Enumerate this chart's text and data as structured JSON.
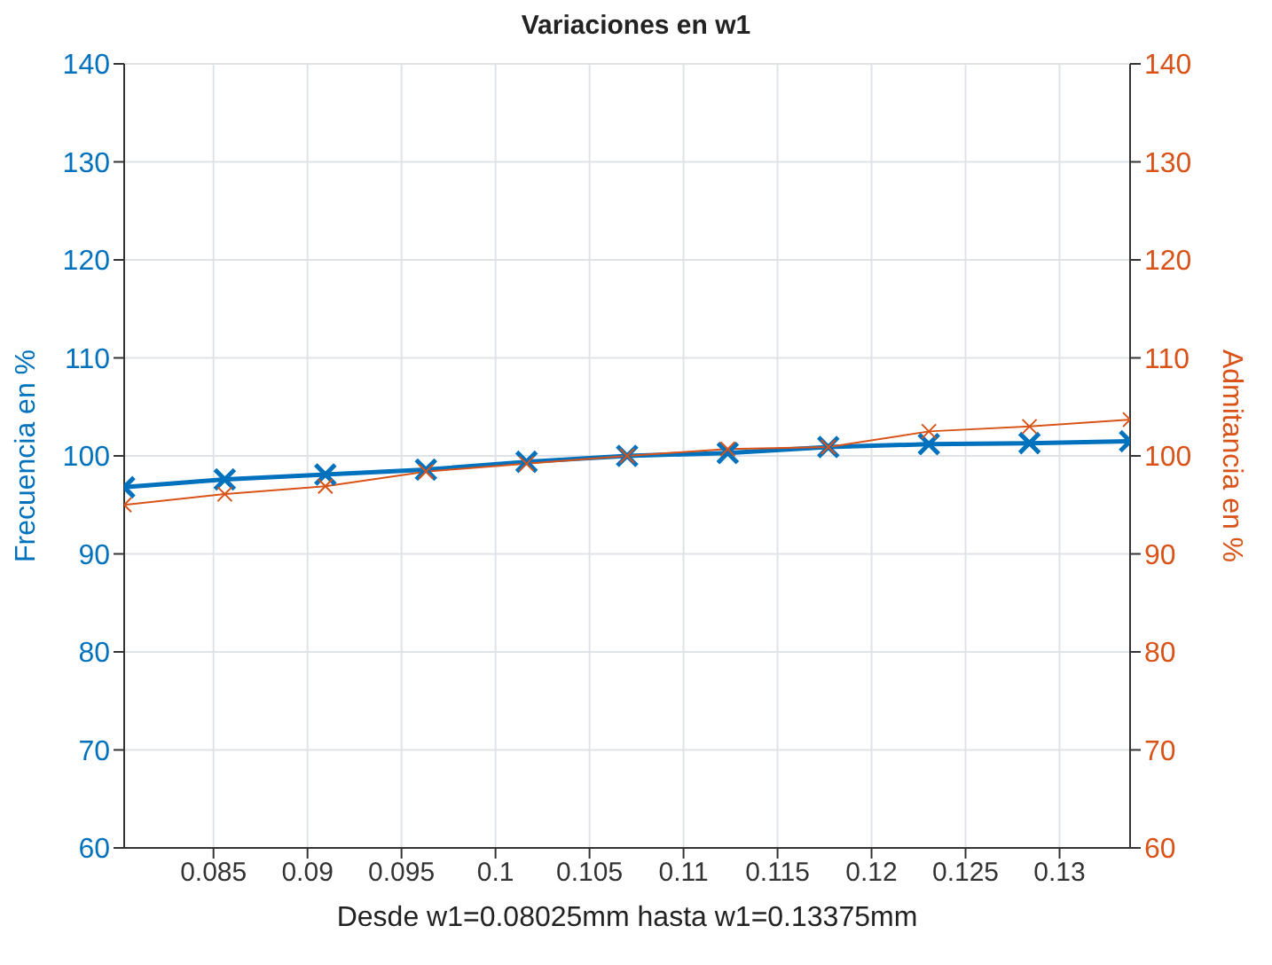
{
  "chart_data": {
    "type": "line",
    "title": "Variaciones en w1",
    "xlabel": "Desde w1=0.08025mm hasta w1=0.13375mm",
    "ylabel": "Frecuencia en %",
    "y2label": "Admitancia en %",
    "x": [
      0.08025,
      0.0856,
      0.09095,
      0.0963,
      0.10165,
      0.107,
      0.11235,
      0.1177,
      0.12305,
      0.1284,
      0.13375
    ],
    "series": [
      {
        "color": "#0072bd",
        "values": [
          96.8,
          97.6,
          98.1,
          98.6,
          99.4,
          100,
          100.3,
          100.9,
          101.2,
          101.3,
          101.5
        ]
      },
      {
        "color": "#d95319",
        "axis": "y2",
        "values": [
          95.0,
          96.1,
          96.9,
          98.4,
          99.2,
          100,
          100.7,
          100.9,
          102.5,
          103.0,
          103.7
        ]
      }
    ],
    "xlim": [
      0.08025,
      0.13375
    ],
    "xticks": [
      0.085,
      0.09,
      0.095,
      0.1,
      0.105,
      0.11,
      0.115,
      0.12,
      0.125,
      0.13
    ],
    "ylim": [
      60,
      140
    ],
    "yticks": [
      60,
      70,
      80,
      90,
      100,
      110,
      120,
      130,
      140
    ],
    "y2lim": [
      60,
      140
    ],
    "y2ticks": [
      60,
      70,
      80,
      90,
      100,
      110,
      120,
      130,
      140
    ],
    "grid": true,
    "marker": "cross",
    "line_style": "solid",
    "legend": false
  }
}
